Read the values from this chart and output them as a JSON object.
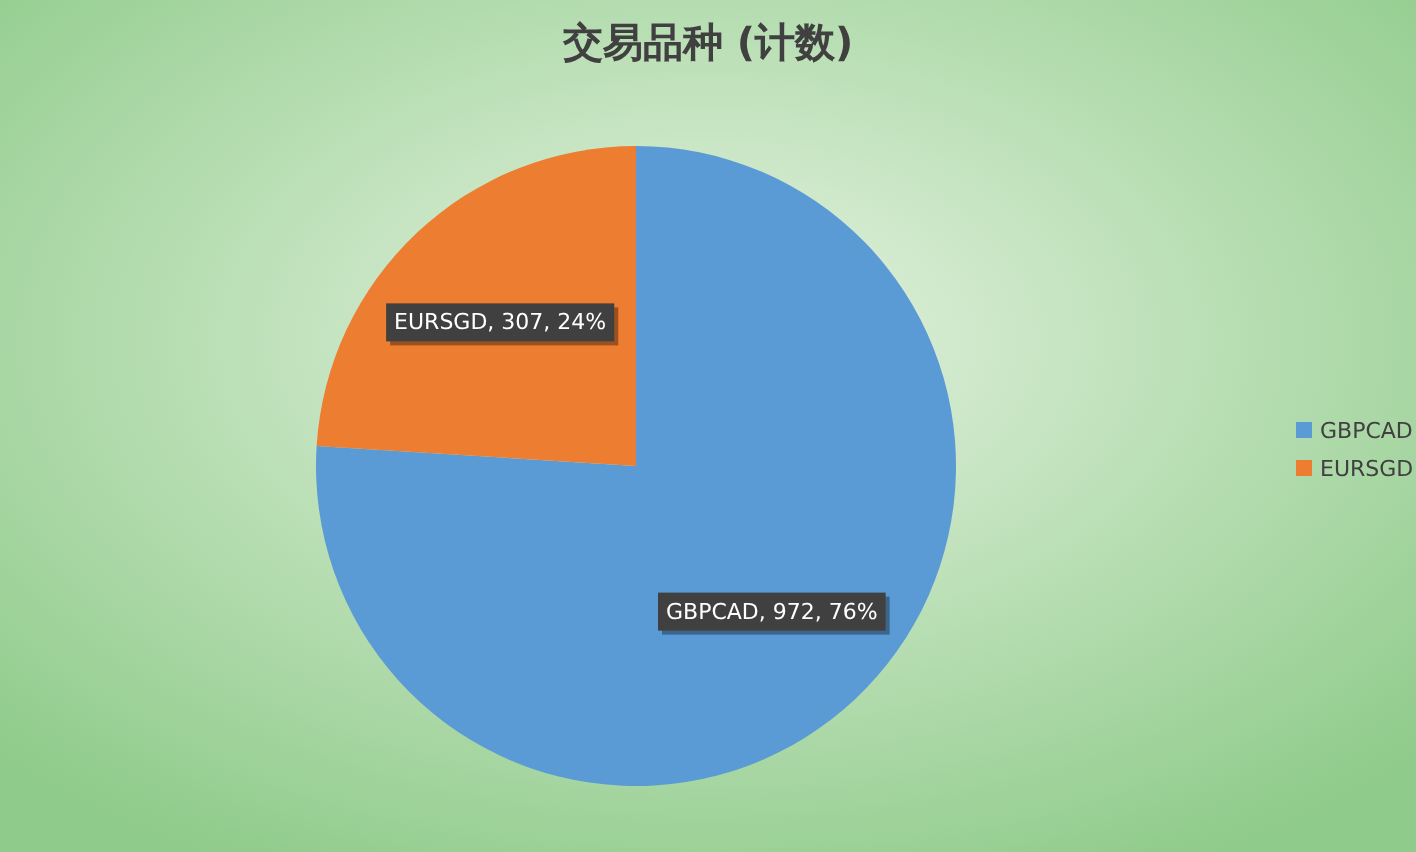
{
  "chart_data": {
    "type": "pie",
    "title": "交易品种 (计数)",
    "categories": [
      "GBPCAD",
      "EURSGD"
    ],
    "values": [
      972,
      307
    ],
    "value_labels": [
      "GBPCAD, 972, 76%",
      "EURSGD, 307, 24%"
    ],
    "colors": [
      "#5b9bd5",
      "#ed7d31"
    ],
    "legend": "right"
  }
}
